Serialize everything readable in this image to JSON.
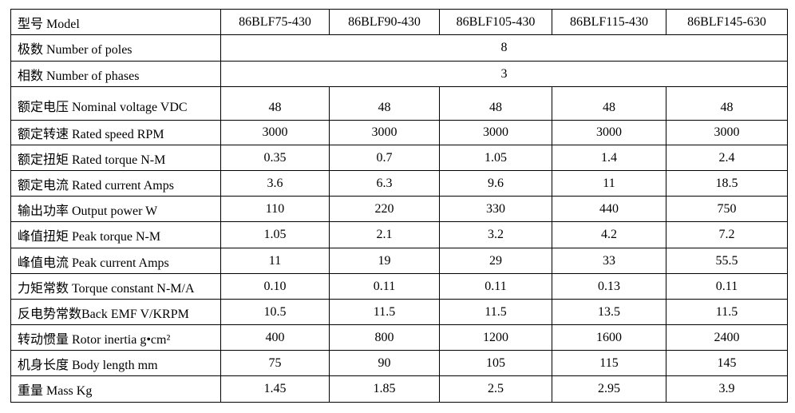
{
  "table": {
    "header": {
      "label": "型号 Model",
      "models": [
        "86BLF75-430",
        "86BLF90-430",
        "86BLF105-430",
        "86BLF115-430",
        "86BLF145-630"
      ]
    },
    "rows": [
      {
        "label": "极数 Number of poles",
        "values": [
          "8"
        ]
      },
      {
        "label": "相数 Number of phases",
        "values": [
          "3"
        ]
      },
      {
        "label": "额定电压 Nominal voltage VDC",
        "values": [
          "48",
          "48",
          "48",
          "48",
          "48"
        ]
      },
      {
        "label": "额定转速 Rated speed RPM",
        "values": [
          "3000",
          "3000",
          "3000",
          "3000",
          "3000"
        ]
      },
      {
        "label": "额定扭矩 Rated torque N-M",
        "values": [
          "0.35",
          "0.7",
          "1.05",
          "1.4",
          "2.4"
        ]
      },
      {
        "label": "额定电流 Rated current Amps",
        "values": [
          "3.6",
          "6.3",
          "9.6",
          "11",
          "18.5"
        ]
      },
      {
        "label": "输出功率 Output power W",
        "values": [
          "110",
          "220",
          "330",
          "440",
          "750"
        ]
      },
      {
        "label": "峰值扭矩 Peak torque N-M",
        "values": [
          "1.05",
          "2.1",
          "3.2",
          "4.2",
          "7.2"
        ]
      },
      {
        "label": "峰值电流 Peak current Amps",
        "values": [
          "11",
          "19",
          "29",
          "33",
          "55.5"
        ]
      },
      {
        "label": "力矩常数 Torque constant N-M/A",
        "values": [
          "0.10",
          "0.11",
          "0.11",
          "0.13",
          "0.11"
        ]
      },
      {
        "label": "反电势常数Back EMF V/KRPM",
        "values": [
          "10.5",
          "11.5",
          "11.5",
          "13.5",
          "11.5"
        ]
      },
      {
        "label": "转动惯量 Rotor inertia g•cm²",
        "values": [
          "400",
          "800",
          "1200",
          "1600",
          "2400"
        ]
      },
      {
        "label": "机身长度 Body length mm",
        "values": [
          "75",
          "90",
          "105",
          "115",
          "145"
        ]
      },
      {
        "label": "重量 Mass Kg",
        "values": [
          "1.45",
          "1.85",
          "2.5",
          "2.95",
          "3.9"
        ]
      }
    ]
  }
}
